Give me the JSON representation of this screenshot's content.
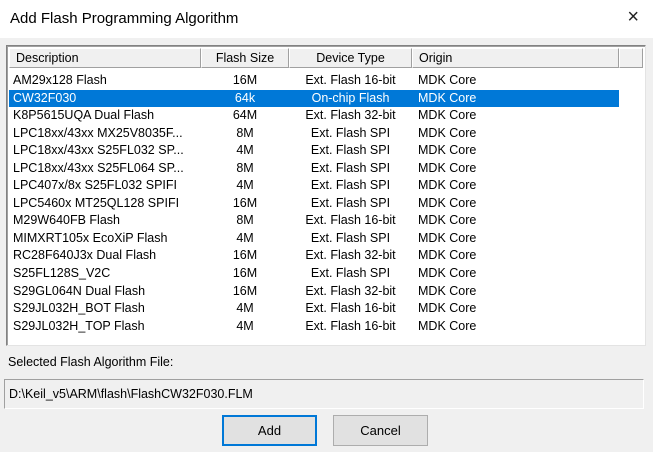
{
  "window": {
    "title": "Add Flash Programming Algorithm",
    "close_icon": "×"
  },
  "table": {
    "columns": [
      "Description",
      "Flash Size",
      "Device Type",
      "Origin"
    ],
    "selected_index": 1,
    "rows": [
      [
        "AM29x128 Flash",
        "16M",
        "Ext. Flash 16-bit",
        "MDK Core"
      ],
      [
        "CW32F030",
        "64k",
        "On-chip Flash",
        "MDK Core"
      ],
      [
        "K8P5615UQA Dual Flash",
        "64M",
        "Ext. Flash 32-bit",
        "MDK Core"
      ],
      [
        "LPC18xx/43xx MX25V8035F...",
        "8M",
        "Ext. Flash SPI",
        "MDK Core"
      ],
      [
        "LPC18xx/43xx S25FL032 SP...",
        "4M",
        "Ext. Flash SPI",
        "MDK Core"
      ],
      [
        "LPC18xx/43xx S25FL064 SP...",
        "8M",
        "Ext. Flash SPI",
        "MDK Core"
      ],
      [
        "LPC407x/8x S25FL032 SPIFI",
        "4M",
        "Ext. Flash SPI",
        "MDK Core"
      ],
      [
        "LPC5460x MT25QL128 SPIFI",
        "16M",
        "Ext. Flash SPI",
        "MDK Core"
      ],
      [
        "M29W640FB Flash",
        "8M",
        "Ext. Flash 16-bit",
        "MDK Core"
      ],
      [
        "MIMXRT105x EcoXiP Flash",
        "4M",
        "Ext. Flash SPI",
        "MDK Core"
      ],
      [
        "RC28F640J3x Dual Flash",
        "16M",
        "Ext. Flash 32-bit",
        "MDK Core"
      ],
      [
        "S25FL128S_V2C",
        "16M",
        "Ext. Flash SPI",
        "MDK Core"
      ],
      [
        "S29GL064N Dual Flash",
        "16M",
        "Ext. Flash 32-bit",
        "MDK Core"
      ],
      [
        "S29JL032H_BOT Flash",
        "4M",
        "Ext. Flash 16-bit",
        "MDK Core"
      ],
      [
        "S29JL032H_TOP Flash",
        "4M",
        "Ext. Flash 16-bit",
        "MDK Core"
      ]
    ]
  },
  "file": {
    "label": "Selected Flash Algorithm File:",
    "value": "D:\\Keil_v5\\ARM\\flash\\FlashCW32F030.FLM"
  },
  "buttons": {
    "add": "Add",
    "cancel": "Cancel"
  },
  "colors": {
    "selection": "#0078d7"
  }
}
